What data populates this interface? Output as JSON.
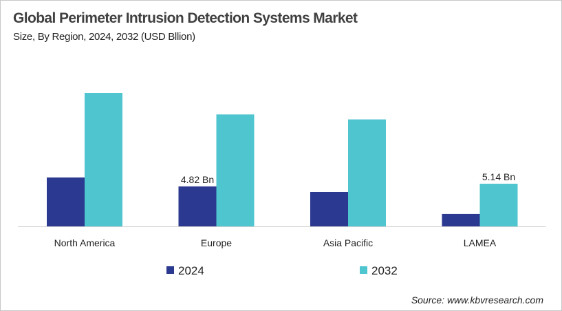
{
  "chart_data": {
    "type": "bar",
    "title": "Global Perimeter Intrusion  Detection Systems Market",
    "subtitle": "Size, By Region, 2024, 2032 (USD Bllion)",
    "categories": [
      "North America",
      "Europe",
      "Asia Pacific",
      "LAMEA"
    ],
    "series": [
      {
        "name": "2024",
        "color": "#2b3990",
        "values": [
          5.9,
          4.82,
          4.15,
          1.5
        ]
      },
      {
        "name": "2032",
        "color": "#4ec5cf",
        "values": [
          16.1,
          13.5,
          12.9,
          5.14
        ]
      }
    ],
    "data_labels": [
      {
        "series": 0,
        "category": 1,
        "text": "4.82 Bn"
      },
      {
        "series": 1,
        "category": 3,
        "text": "5.14 Bn"
      }
    ],
    "ylim": [
      0,
      17
    ],
    "grid": false,
    "y_axis_visible": false,
    "legend_position": "bottom"
  },
  "source": "Source: www.kbvresearch.com"
}
